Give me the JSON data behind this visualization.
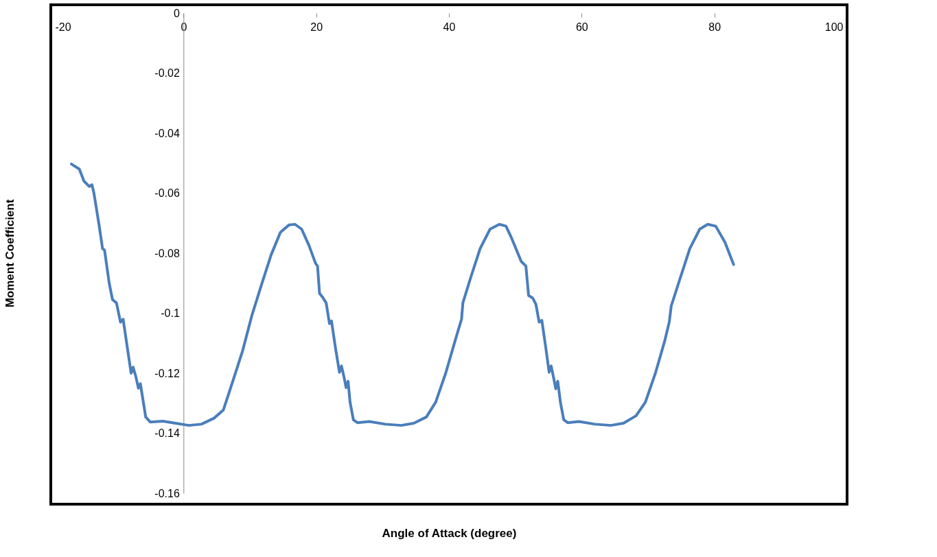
{
  "chart_data": {
    "type": "line",
    "xlabel": "Angle of Attack (degree)",
    "ylabel": "Moment Coefficient",
    "xlim": [
      -20,
      100
    ],
    "xticks": [
      -20,
      0,
      20,
      40,
      60,
      80,
      100
    ],
    "ylim": [
      -0.16,
      0
    ],
    "yticks": [
      0,
      -0.02,
      -0.04,
      -0.06,
      -0.08,
      -0.1,
      -0.12,
      -0.14,
      -0.16
    ],
    "grid": false,
    "marker": "none",
    "line_style": "solid",
    "series": [
      {
        "color": "#4a7ebb",
        "x": [
          -16.9,
          -15.7,
          -15.0,
          -14.2,
          -13.8,
          -13.5,
          -12.7,
          -12.2,
          -11.9,
          -11.2,
          -10.7,
          -10.1,
          -9.5,
          -9.1,
          -8.5,
          -7.9,
          -7.6,
          -7.2,
          -6.8,
          -6.5,
          -6.1,
          -5.7,
          -5.0,
          -3.1,
          -1.2,
          0.8,
          2.7,
          4.6,
          6.0,
          7.5,
          8.9,
          10.3,
          11.8,
          13.2,
          14.6,
          15.9,
          16.8,
          17.8,
          18.9,
          19.9,
          20.2,
          20.5,
          20.9,
          21.5,
          22.0,
          22.3,
          22.9,
          23.5,
          23.8,
          24.2,
          24.5,
          24.8,
          25.1,
          25.6,
          26.2,
          28.0,
          30.4,
          32.8,
          34.7,
          36.6,
          38.0,
          39.5,
          40.9,
          41.9,
          42.1,
          43.3,
          44.7,
          46.2,
          47.6,
          48.6,
          49.5,
          50.9,
          51.6,
          52.0,
          52.6,
          53.1,
          53.6,
          54.0,
          54.6,
          55.1,
          55.4,
          55.8,
          56.1,
          56.4,
          56.8,
          57.3,
          57.9,
          59.6,
          62.0,
          64.4,
          66.3,
          68.2,
          69.6,
          71.1,
          72.5,
          73.2,
          73.5,
          74.9,
          76.3,
          77.8,
          79.0,
          80.2,
          81.6,
          82.9
        ],
        "values": [
          -0.0503,
          -0.052,
          -0.056,
          -0.0578,
          -0.0572,
          -0.06,
          -0.071,
          -0.0785,
          -0.079,
          -0.09,
          -0.0955,
          -0.0966,
          -0.103,
          -0.102,
          -0.111,
          -0.12,
          -0.118,
          -0.121,
          -0.125,
          -0.1235,
          -0.129,
          -0.1346,
          -0.1363,
          -0.136,
          -0.1367,
          -0.1374,
          -0.137,
          -0.135,
          -0.1323,
          -0.1222,
          -0.1126,
          -0.1008,
          -0.0902,
          -0.0806,
          -0.0731,
          -0.0706,
          -0.0704,
          -0.072,
          -0.0774,
          -0.0834,
          -0.0843,
          -0.0934,
          -0.0945,
          -0.0966,
          -0.1035,
          -0.1026,
          -0.1116,
          -0.1197,
          -0.1176,
          -0.1214,
          -0.1248,
          -0.1227,
          -0.1297,
          -0.1355,
          -0.1365,
          -0.1361,
          -0.137,
          -0.1374,
          -0.1367,
          -0.1346,
          -0.1297,
          -0.1201,
          -0.1094,
          -0.102,
          -0.0966,
          -0.088,
          -0.0785,
          -0.072,
          -0.0704,
          -0.071,
          -0.0753,
          -0.0828,
          -0.0843,
          -0.0941,
          -0.0949,
          -0.097,
          -0.103,
          -0.1024,
          -0.1116,
          -0.1197,
          -0.1176,
          -0.1218,
          -0.1252,
          -0.1227,
          -0.1297,
          -0.1355,
          -0.1365,
          -0.1361,
          -0.137,
          -0.1374,
          -0.1367,
          -0.1342,
          -0.1297,
          -0.1201,
          -0.1094,
          -0.103,
          -0.0976,
          -0.088,
          -0.0785,
          -0.072,
          -0.0704,
          -0.071,
          -0.0764,
          -0.0838
        ]
      }
    ]
  }
}
